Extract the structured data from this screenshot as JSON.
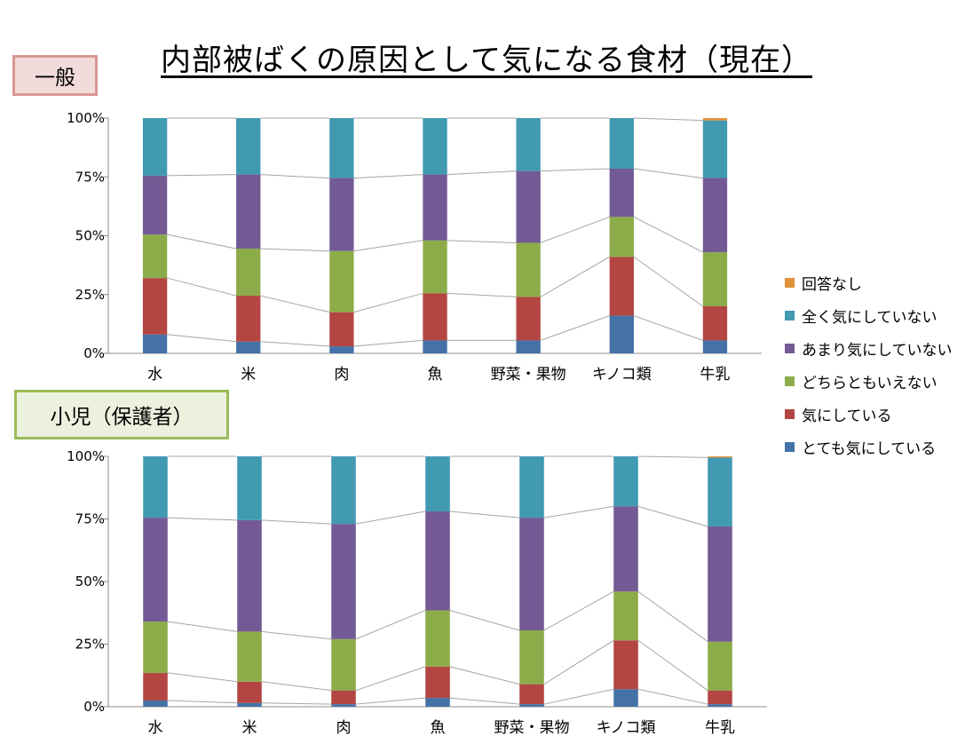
{
  "title": "内部被ばくの原因として気になる食材（現在）",
  "badge_general": "一般",
  "badge_child": "小児（保護者）",
  "colors": {
    "no_answer": "#e0913b",
    "not_at_all": "#4199b2",
    "not_much": "#735a94",
    "neutral": "#8cac4a",
    "concerned": "#b34642",
    "very_concerned": "#4472a7"
  },
  "legend": [
    {
      "label": "回答なし",
      "key": "no_answer"
    },
    {
      "label": "全く気にしていない",
      "key": "not_at_all"
    },
    {
      "label": "あまり気にしていない",
      "key": "not_much"
    },
    {
      "label": "どちらともいえない",
      "key": "neutral"
    },
    {
      "label": "気にしている",
      "key": "concerned"
    },
    {
      "label": "とても気にしている",
      "key": "very_concerned"
    }
  ],
  "chart_data": [
    {
      "type": "bar",
      "stacked": true,
      "title": "一般",
      "categories": [
        "水",
        "米",
        "肉",
        "魚",
        "野菜・果物",
        "キノコ類",
        "牛乳"
      ],
      "y_ticks": [
        "0%",
        "25%",
        "50%",
        "75%",
        "100%"
      ],
      "ylim": [
        0,
        100
      ],
      "series": [
        {
          "name": "とても気にしている",
          "key": "very_concerned",
          "values": [
            8,
            5,
            3,
            5.5,
            5.5,
            16,
            5.5
          ]
        },
        {
          "name": "気にしている",
          "key": "concerned",
          "values": [
            24,
            19.5,
            14.5,
            20,
            18.5,
            25,
            14.5
          ]
        },
        {
          "name": "どちらともいえない",
          "key": "neutral",
          "values": [
            18.5,
            20,
            26,
            22.5,
            23,
            17,
            23
          ]
        },
        {
          "name": "あまり気にしていない",
          "key": "not_much",
          "values": [
            25,
            31.5,
            31,
            28,
            30.5,
            20.5,
            31.5
          ]
        },
        {
          "name": "全く気にしていない",
          "key": "not_at_all",
          "values": [
            24.5,
            24,
            25.5,
            24,
            22.5,
            21.5,
            24.5
          ]
        },
        {
          "name": "回答なし",
          "key": "no_answer",
          "values": [
            0,
            0,
            0,
            0,
            0,
            0,
            1
          ]
        }
      ]
    },
    {
      "type": "bar",
      "stacked": true,
      "title": "小児（保護者）",
      "categories": [
        "水",
        "米",
        "肉",
        "魚",
        "野菜・果物",
        "キノコ類",
        "牛乳"
      ],
      "y_ticks": [
        "0%",
        "25%",
        "50%",
        "75%",
        "100%"
      ],
      "ylim": [
        0,
        100
      ],
      "series": [
        {
          "name": "とても気にしている",
          "key": "very_concerned",
          "values": [
            2.5,
            1.5,
            1,
            3.5,
            1,
            7,
            1
          ]
        },
        {
          "name": "気にしている",
          "key": "concerned",
          "values": [
            11,
            8.5,
            5.5,
            12.5,
            8,
            19.5,
            5.5
          ]
        },
        {
          "name": "どちらともいえない",
          "key": "neutral",
          "values": [
            20.5,
            20,
            20.5,
            22.5,
            21.5,
            19.5,
            19.5
          ]
        },
        {
          "name": "あまり気にしていない",
          "key": "not_much",
          "values": [
            41.5,
            44.5,
            46,
            39.5,
            45,
            34,
            46
          ]
        },
        {
          "name": "全く気にしていない",
          "key": "not_at_all",
          "values": [
            24.5,
            25.5,
            27,
            22,
            24.5,
            20,
            27.5
          ]
        },
        {
          "name": "回答なし",
          "key": "no_answer",
          "values": [
            0,
            0,
            0,
            0,
            0,
            0,
            0.5
          ]
        }
      ]
    }
  ]
}
